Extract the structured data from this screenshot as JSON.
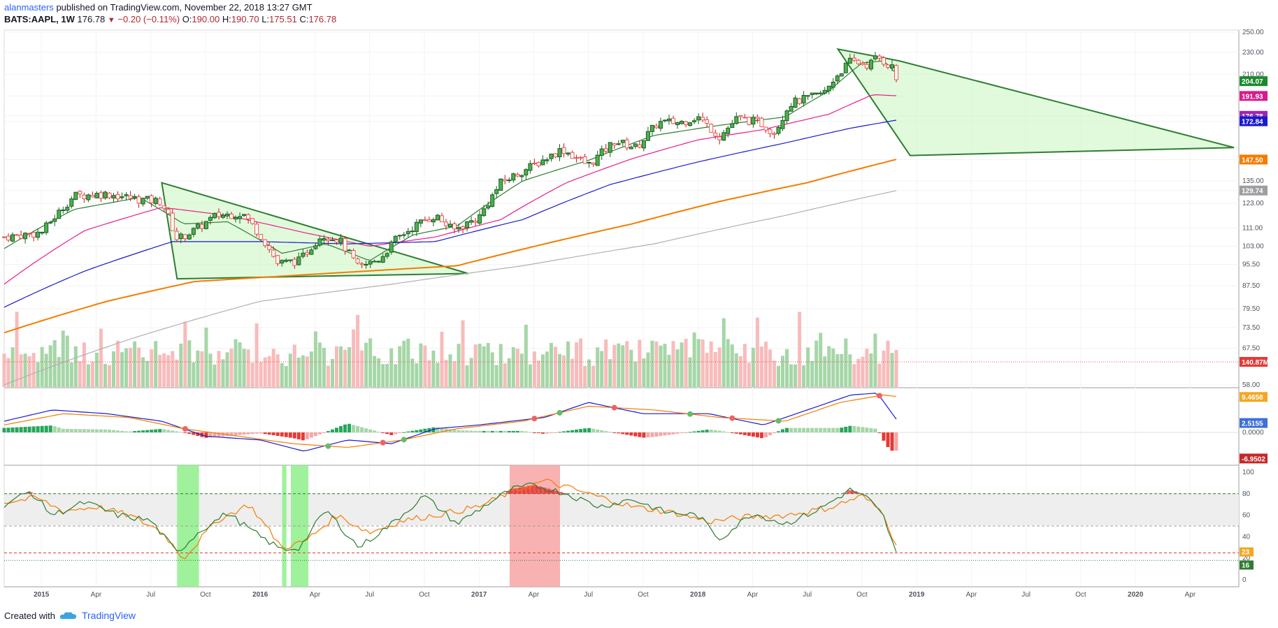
{
  "header": {
    "author": "alanmasters",
    "published": "published on TradingView.com, November 22, 2018 13:27 GMT",
    "symbol": "BATS:AAPL, 1W",
    "last": "176.78",
    "change": "−0.20 (−0.11%)",
    "open_label": "O:",
    "open": "190.00",
    "high_label": "H:",
    "high": "190.70",
    "low_label": "L:",
    "low": "175.51",
    "close_label": "C:",
    "close": "176.78"
  },
  "footer": {
    "created_with": "Created with",
    "brand": "TradingView"
  },
  "colors": {
    "up": "#4caf50",
    "down": "#ef5350",
    "ema_fast": "#2e7d32",
    "ema_pink": "#e91e8c",
    "ema_blue": "#1a1acf",
    "ema_orange": "#f57c00",
    "ema_grey": "#b0b0b0",
    "wedge_fill": "#c8f5c0",
    "wedge_stroke": "#2e7d32"
  },
  "chart_data": [
    {
      "type": "candlestick",
      "title": "BATS:AAPL, 1W",
      "x_ticks": [
        "2015",
        "Apr",
        "Jul",
        "Oct",
        "2016",
        "Apr",
        "Jul",
        "Oct",
        "2017",
        "Apr",
        "Jul",
        "Oct",
        "2018",
        "Apr",
        "Jul",
        "Oct",
        "2019",
        "Apr",
        "Jul",
        "Oct",
        "2020",
        "Apr"
      ],
      "y_ticks": [
        "250.00",
        "230.00",
        "210.00",
        "191.93",
        "176.78",
        "172.84",
        "147.50",
        "135.00",
        "129.74",
        "123.00",
        "111.00",
        "103.00",
        "95.50",
        "87.50",
        "79.50",
        "73.50",
        "67.50",
        "58.00"
      ],
      "ylim": [
        58,
        250
      ],
      "price_path": [
        [
          2014.83,
          107
        ],
        [
          2015.0,
          109
        ],
        [
          2015.15,
          127
        ],
        [
          2015.3,
          128
        ],
        [
          2015.45,
          125
        ],
        [
          2015.55,
          124
        ],
        [
          2015.62,
          106
        ],
        [
          2015.7,
          110
        ],
        [
          2015.8,
          117
        ],
        [
          2015.92,
          118
        ],
        [
          2016.0,
          108
        ],
        [
          2016.08,
          96
        ],
        [
          2016.18,
          97
        ],
        [
          2016.28,
          108
        ],
        [
          2016.36,
          106
        ],
        [
          2016.45,
          94
        ],
        [
          2016.55,
          98
        ],
        [
          2016.62,
          106
        ],
        [
          2016.72,
          113
        ],
        [
          2016.8,
          117
        ],
        [
          2016.88,
          110
        ],
        [
          2017.0,
          116
        ],
        [
          2017.1,
          134
        ],
        [
          2017.25,
          144
        ],
        [
          2017.38,
          154
        ],
        [
          2017.5,
          144
        ],
        [
          2017.62,
          159
        ],
        [
          2017.72,
          155
        ],
        [
          2017.82,
          172
        ],
        [
          2017.92,
          172
        ],
        [
          2018.0,
          176
        ],
        [
          2018.1,
          162
        ],
        [
          2018.18,
          175
        ],
        [
          2018.28,
          172
        ],
        [
          2018.35,
          165
        ],
        [
          2018.42,
          186
        ],
        [
          2018.52,
          191
        ],
        [
          2018.58,
          195
        ],
        [
          2018.63,
          208
        ],
        [
          2018.7,
          222
        ],
        [
          2018.78,
          218
        ],
        [
          2018.82,
          226
        ],
        [
          2018.86,
          220
        ],
        [
          2018.89,
          216
        ],
        [
          2018.91,
          204
        ],
        [
          2018.92,
          176.78
        ]
      ],
      "moving_averages": [
        {
          "name": "EMA fast",
          "color": "#2e7d32",
          "last": "204.07",
          "path": [
            [
              2014.83,
              102
            ],
            [
              2015.15,
              120
            ],
            [
              2015.45,
              126
            ],
            [
              2015.65,
              113
            ],
            [
              2015.85,
              114
            ],
            [
              2016.1,
              100
            ],
            [
              2016.3,
              104
            ],
            [
              2016.5,
              97
            ],
            [
              2016.7,
              108
            ],
            [
              2016.9,
              112
            ],
            [
              2017.2,
              135
            ],
            [
              2017.5,
              147
            ],
            [
              2017.8,
              163
            ],
            [
              2018.1,
              170
            ],
            [
              2018.4,
              176
            ],
            [
              2018.6,
              196
            ],
            [
              2018.75,
              220
            ],
            [
              2018.85,
              222
            ],
            [
              2018.92,
              208
            ]
          ]
        },
        {
          "name": "EMA pink",
          "color": "#e91e8c",
          "last": "191.93",
          "path": [
            [
              2014.83,
              88
            ],
            [
              2015.2,
              110
            ],
            [
              2015.55,
              121
            ],
            [
              2015.85,
              117
            ],
            [
              2016.2,
              109
            ],
            [
              2016.5,
              103
            ],
            [
              2016.8,
              107
            ],
            [
              2017.1,
              115
            ],
            [
              2017.4,
              134
            ],
            [
              2017.7,
              148
            ],
            [
              2018.0,
              160
            ],
            [
              2018.3,
              167
            ],
            [
              2018.6,
              178
            ],
            [
              2018.8,
              193
            ],
            [
              2018.92,
              192
            ]
          ]
        },
        {
          "name": "EMA blue",
          "color": "#1a1acf",
          "last": "172.84",
          "path": [
            [
              2014.83,
              80
            ],
            [
              2015.2,
              93
            ],
            [
              2015.6,
              105
            ],
            [
              2016.0,
              105
            ],
            [
              2016.4,
              104
            ],
            [
              2016.8,
              105
            ],
            [
              2017.2,
              115
            ],
            [
              2017.6,
              133
            ],
            [
              2018.0,
              146
            ],
            [
              2018.4,
              158
            ],
            [
              2018.7,
              168
            ],
            [
              2018.92,
              174
            ]
          ]
        },
        {
          "name": "EMA orange",
          "color": "#f57c00",
          "last": "147.50",
          "path": [
            [
              2014.83,
              72
            ],
            [
              2015.3,
              82
            ],
            [
              2015.7,
              89
            ],
            [
              2016.1,
              91
            ],
            [
              2016.5,
              93
            ],
            [
              2016.9,
              95
            ],
            [
              2017.3,
              104
            ],
            [
              2017.7,
              113
            ],
            [
              2018.1,
              124
            ],
            [
              2018.5,
              134
            ],
            [
              2018.92,
              148
            ]
          ]
        },
        {
          "name": "SMA grey",
          "color": "#b0b0b0",
          "last": "129.74",
          "path": [
            [
              2014.83,
              58
            ],
            [
              2015.4,
              70
            ],
            [
              2016.0,
              82
            ],
            [
              2016.6,
              88
            ],
            [
              2017.2,
              95
            ],
            [
              2017.8,
              104
            ],
            [
              2018.4,
              117
            ],
            [
              2018.92,
              130
            ]
          ]
        }
      ],
      "last_value_badges": [
        {
          "label": "204.07",
          "value": 204.07,
          "color": "#1b8a2f"
        },
        {
          "label": "191.93",
          "value": 191.93,
          "color": "#d81b8a"
        },
        {
          "label": "176.78",
          "value": 176.78,
          "color": "#9c27b0"
        },
        {
          "label": "172.84",
          "value": 172.84,
          "color": "#1a1acf"
        },
        {
          "label": "147.50",
          "value": 147.5,
          "color": "#f57c00"
        },
        {
          "label": "129.74",
          "value": 129.74,
          "color": "#9e9e9e"
        },
        {
          "label": "140.87M",
          "value": 66.5,
          "color": "#e53935"
        }
      ],
      "patterns": [
        {
          "name": "descending wedge 2015-2016",
          "points": [
            [
              2015.55,
              134
            ],
            [
              2015.62,
              90
            ],
            [
              2016.95,
              92
            ]
          ]
        },
        {
          "name": "descending wedge 2018",
          "points": [
            [
              2018.64,
              233
            ],
            [
              2018.97,
              150
            ],
            [
              2020.45,
              155
            ],
            [
              2018.92,
              222
            ]
          ]
        }
      ],
      "volume_label": "140.87M"
    },
    {
      "type": "macd",
      "y_ticks": [
        "0.0000"
      ],
      "ylim": [
        -8,
        11
      ],
      "macd_line": {
        "color": "#1a1acf",
        "last": "2.5155",
        "path": [
          [
            2014.83,
            3
          ],
          [
            2015.05,
            6
          ],
          [
            2015.3,
            5
          ],
          [
            2015.55,
            3
          ],
          [
            2015.75,
            -1
          ],
          [
            2016.0,
            -2
          ],
          [
            2016.2,
            -5
          ],
          [
            2016.4,
            -2
          ],
          [
            2016.6,
            -3
          ],
          [
            2016.8,
            1
          ],
          [
            2017.0,
            2
          ],
          [
            2017.3,
            4
          ],
          [
            2017.5,
            8
          ],
          [
            2017.75,
            5
          ],
          [
            2018.05,
            5
          ],
          [
            2018.3,
            2
          ],
          [
            2018.5,
            6
          ],
          [
            2018.7,
            10
          ],
          [
            2018.82,
            10.5
          ],
          [
            2018.92,
            2.5
          ]
        ]
      },
      "signal_line": {
        "color": "#f57c00",
        "last": "9.4658",
        "path": [
          [
            2014.83,
            2
          ],
          [
            2015.1,
            5
          ],
          [
            2015.4,
            4
          ],
          [
            2015.65,
            1
          ],
          [
            2015.9,
            -1
          ],
          [
            2016.15,
            -3
          ],
          [
            2016.4,
            -4
          ],
          [
            2016.65,
            -2
          ],
          [
            2016.9,
            1
          ],
          [
            2017.2,
            3
          ],
          [
            2017.5,
            7
          ],
          [
            2017.8,
            6
          ],
          [
            2018.1,
            4
          ],
          [
            2018.4,
            3
          ],
          [
            2018.65,
            8
          ],
          [
            2018.85,
            10
          ],
          [
            2018.92,
            9.5
          ]
        ]
      },
      "histogram_label": "-6.9502"
    },
    {
      "type": "rsi",
      "y_ticks": [
        "100",
        "80",
        "60",
        "40",
        "20",
        "0"
      ],
      "ylim": [
        0,
        100
      ],
      "reference_levels": [
        80,
        50,
        25,
        18
      ],
      "rsi_label": "16",
      "signal_label": "23",
      "rsi_path": [
        [
          2014.83,
          70
        ],
        [
          2014.95,
          82
        ],
        [
          2015.05,
          60
        ],
        [
          2015.2,
          72
        ],
        [
          2015.35,
          60
        ],
        [
          2015.5,
          55
        ],
        [
          2015.62,
          25
        ],
        [
          2015.72,
          45
        ],
        [
          2015.85,
          62
        ],
        [
          2016.0,
          40
        ],
        [
          2016.1,
          28
        ],
        [
          2016.18,
          30
        ],
        [
          2016.3,
          65
        ],
        [
          2016.45,
          30
        ],
        [
          2016.6,
          52
        ],
        [
          2016.75,
          78
        ],
        [
          2016.9,
          52
        ],
        [
          2017.05,
          72
        ],
        [
          2017.15,
          84
        ],
        [
          2017.25,
          88
        ],
        [
          2017.4,
          80
        ],
        [
          2017.55,
          68
        ],
        [
          2017.7,
          75
        ],
        [
          2017.85,
          63
        ],
        [
          2018.0,
          60
        ],
        [
          2018.1,
          38
        ],
        [
          2018.25,
          62
        ],
        [
          2018.4,
          52
        ],
        [
          2018.55,
          65
        ],
        [
          2018.7,
          84
        ],
        [
          2018.78,
          75
        ],
        [
          2018.85,
          58
        ],
        [
          2018.92,
          16
        ]
      ],
      "signal_path": [
        [
          2014.83,
          72
        ],
        [
          2014.98,
          76
        ],
        [
          2015.1,
          64
        ],
        [
          2015.25,
          68
        ],
        [
          2015.4,
          60
        ],
        [
          2015.55,
          45
        ],
        [
          2015.65,
          20
        ],
        [
          2015.8,
          55
        ],
        [
          2015.95,
          70
        ],
        [
          2016.1,
          30
        ],
        [
          2016.2,
          35
        ],
        [
          2016.35,
          60
        ],
        [
          2016.5,
          44
        ],
        [
          2016.65,
          55
        ],
        [
          2016.85,
          62
        ],
        [
          2017.0,
          68
        ],
        [
          2017.15,
          82
        ],
        [
          2017.3,
          92
        ],
        [
          2017.5,
          80
        ],
        [
          2017.7,
          68
        ],
        [
          2017.9,
          62
        ],
        [
          2018.05,
          54
        ],
        [
          2018.2,
          58
        ],
        [
          2018.4,
          60
        ],
        [
          2018.6,
          67
        ],
        [
          2018.75,
          78
        ],
        [
          2018.85,
          62
        ],
        [
          2018.92,
          23
        ]
      ]
    }
  ]
}
